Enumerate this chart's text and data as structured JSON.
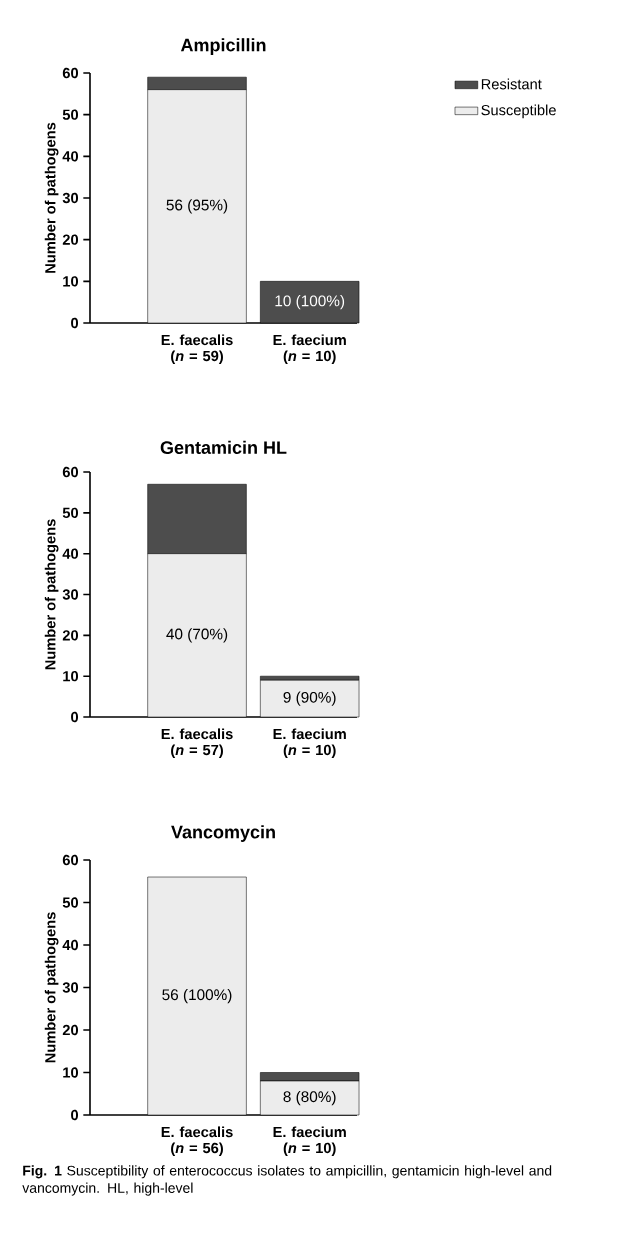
{
  "chart_data": [
    {
      "type": "bar",
      "stacked": true,
      "title": "Ampicillin",
      "ylabel": "Number of pathogens",
      "categories": [
        "E. faecalis (*n* = 59)",
        "E. faecium (*n* = 10)"
      ],
      "ylim": [
        0,
        60
      ],
      "yticks": [
        0,
        10,
        20,
        30,
        40,
        50,
        60
      ],
      "grid": false,
      "legend": "right",
      "series": [
        {
          "name": "Susceptible",
          "color": "#ececec",
          "values": [
            56,
            0
          ],
          "value_labels": [
            "56 (95%)",
            null
          ]
        },
        {
          "name": "Resistant",
          "color": "#4d4d4d",
          "values": [
            3,
            10
          ],
          "value_labels": [
            null,
            "10 (100%)"
          ]
        }
      ]
    },
    {
      "type": "bar",
      "stacked": true,
      "title": "Gentamicin HL",
      "ylabel": "Number of pathogens",
      "categories": [
        "E. faecalis (*n* = 57)",
        "E. faecium (*n* = 10)"
      ],
      "ylim": [
        0,
        60
      ],
      "yticks": [
        0,
        10,
        20,
        30,
        40,
        50,
        60
      ],
      "grid": false,
      "legend": false,
      "series": [
        {
          "color": "#ececec",
          "values": [
            40,
            9
          ],
          "value_labels": [
            "40 (70%)",
            "9 (90%)"
          ]
        },
        {
          "color": "#4d4d4d",
          "values": [
            17,
            1
          ],
          "value_labels": [
            null,
            null
          ]
        }
      ]
    },
    {
      "type": "bar",
      "stacked": true,
      "title": "Vancomycin",
      "ylabel": "Number of pathogens",
      "categories": [
        "E. faecalis (*n* = 56)",
        "E. faecium (*n* = 10)"
      ],
      "ylim": [
        0,
        60
      ],
      "yticks": [
        0,
        10,
        20,
        30,
        40,
        50,
        60
      ],
      "grid": false,
      "legend": false,
      "series": [
        {
          "color": "#ececec",
          "values": [
            56,
            8
          ],
          "value_labels": [
            "56 (100%)",
            "8 (80%)"
          ]
        },
        {
          "color": "#4d4d4d",
          "values": [
            0,
            2
          ],
          "value_labels": [
            null,
            null
          ]
        }
      ],
      "annotations": [
        "**Fig. 1** Susceptibility of enterococcus isolates to ampicillin, gentamicin high-level and vancomycin. HL, high-level"
      ]
    }
  ]
}
